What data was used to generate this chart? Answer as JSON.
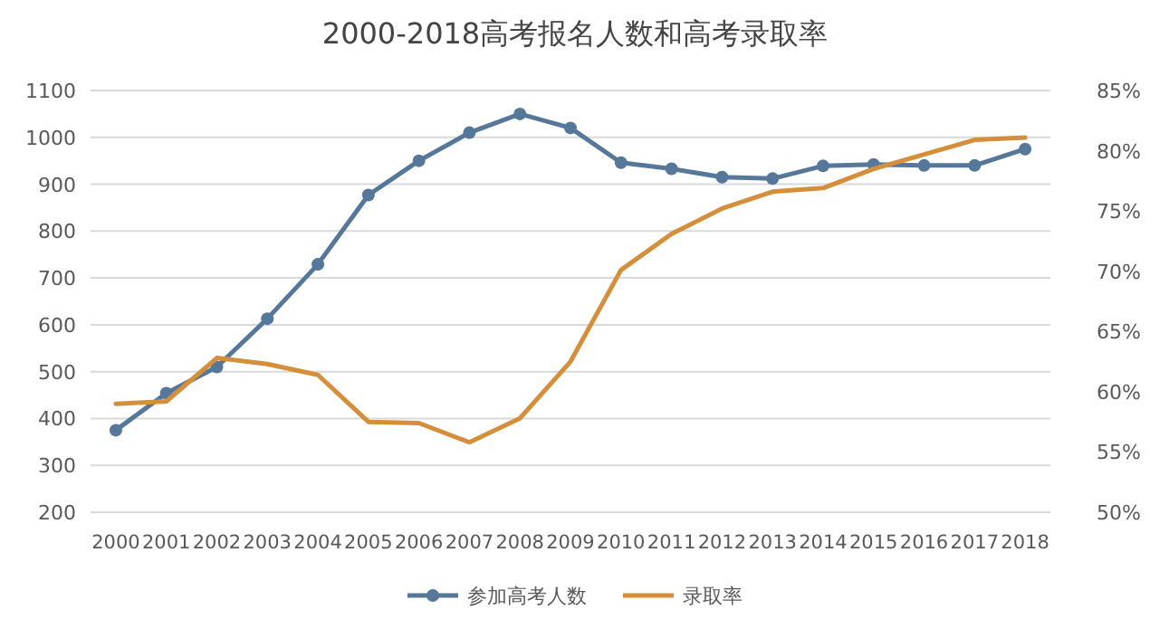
{
  "chart_data": {
    "type": "line",
    "title": "2000-2018高考报名人数和高考录取率",
    "categories": [
      "2000",
      "2001",
      "2002",
      "2003",
      "2004",
      "2005",
      "2006",
      "2007",
      "2008",
      "2009",
      "2010",
      "2011",
      "2012",
      "2013",
      "2014",
      "2015",
      "2016",
      "2017",
      "2018"
    ],
    "series": [
      {
        "name": "参加高考人数",
        "color": "#55789a",
        "marker": "circle",
        "values": [
          375,
          454,
          510,
          613,
          729,
          877,
          950,
          1010,
          1050,
          1020,
          946,
          933,
          915,
          912,
          939,
          942,
          940,
          940,
          975
        ]
      },
      {
        "name": "录取率",
        "color": "#d58f3b",
        "marker": "none",
        "axis": "y2",
        "values": [
          59,
          59.2,
          62.8,
          62.3,
          61.4,
          57.5,
          57.4,
          55.8,
          57.8,
          62.5,
          70.1,
          73.1,
          75.2,
          76.6,
          76.9,
          78.5,
          79.7,
          80.9,
          81.1
        ]
      }
    ],
    "ylim": [
      200,
      1100
    ],
    "yticks": [
      200,
      300,
      400,
      500,
      600,
      700,
      800,
      900,
      1000,
      1100
    ],
    "y2lim": [
      50,
      85
    ],
    "y2ticks": [
      {
        "value": 50,
        "label": "50%"
      },
      {
        "value": 55,
        "label": "55%"
      },
      {
        "value": 60,
        "label": "60%"
      },
      {
        "value": 65,
        "label": "65%"
      },
      {
        "value": 70,
        "label": "70%"
      },
      {
        "value": 75,
        "label": "75%"
      },
      {
        "value": 80,
        "label": "80%"
      },
      {
        "value": 85,
        "label": "85%"
      }
    ],
    "grid": "y",
    "legend": "bottom"
  }
}
